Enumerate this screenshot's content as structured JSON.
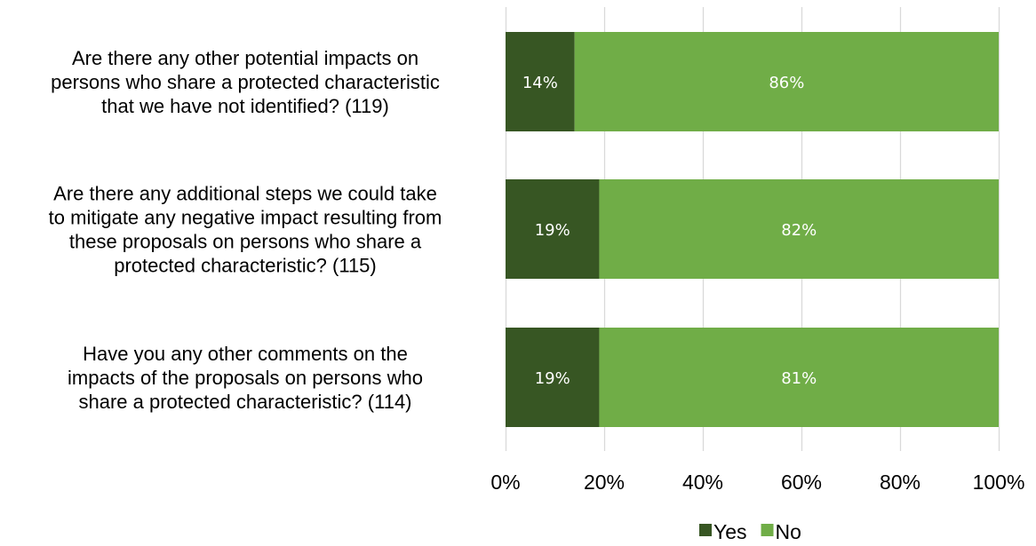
{
  "colors": {
    "yes": "#375623",
    "no": "#70AD47",
    "grid": "#D9D9D9"
  },
  "chart_data": {
    "type": "bar",
    "orientation": "horizontal",
    "stacked": true,
    "categories": [
      "Are there any other potential impacts on persons who share a protected characteristic that we have not identified? (119)",
      "Are there any additional steps we could take to mitigate any negative impact resulting from these proposals on persons who share a protected characteristic? (115)",
      "Have you any other comments on the impacts of the proposals on persons who share a protected characteristic? (114)"
    ],
    "category_lines": [
      [
        "Are there any other potential impacts on",
        "persons who share a protected characteristic",
        "that we have not identified? (119)"
      ],
      [
        "Are there any additional steps we could take",
        "to mitigate any negative impact resulting from",
        "these proposals on persons who share a",
        "protected characteristic? (115)"
      ],
      [
        "Have you any other comments on the",
        "impacts of the proposals on persons who",
        "share a protected characteristic? (114)"
      ]
    ],
    "series": [
      {
        "name": "Yes",
        "values": [
          14,
          19,
          19
        ],
        "labels": [
          "14%",
          "19%",
          "19%"
        ]
      },
      {
        "name": "No",
        "values": [
          86,
          82,
          81
        ],
        "labels": [
          "86%",
          "82%",
          "81%"
        ]
      }
    ],
    "xlim": [
      0,
      100
    ],
    "x_ticks": [
      "0%",
      "20%",
      "40%",
      "60%",
      "80%",
      "100%"
    ],
    "grid": true,
    "legend_position": "bottom"
  }
}
